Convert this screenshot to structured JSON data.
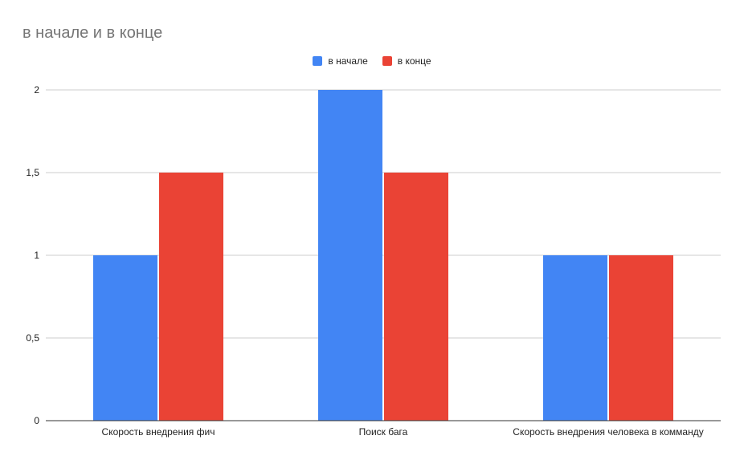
{
  "chart_data": {
    "type": "bar",
    "title": "в начале и в конце",
    "categories": [
      "Скорость внедрения фич",
      "Поиск бага",
      "Скорость внедрения человека в комманду"
    ],
    "series": [
      {
        "name": "в начале",
        "color": "#4285f4",
        "values": [
          1,
          2,
          1
        ]
      },
      {
        "name": "в конце",
        "color": "#ea4335",
        "values": [
          1.5,
          1.5,
          1
        ]
      }
    ],
    "ylim": [
      0,
      2
    ],
    "yticks": [
      "0",
      "0,5",
      "1",
      "1,5",
      "2"
    ],
    "ytick_values": [
      0,
      0.5,
      1,
      1.5,
      2
    ],
    "grid": true,
    "legend_position": "top-center",
    "xlabel": "",
    "ylabel": ""
  }
}
